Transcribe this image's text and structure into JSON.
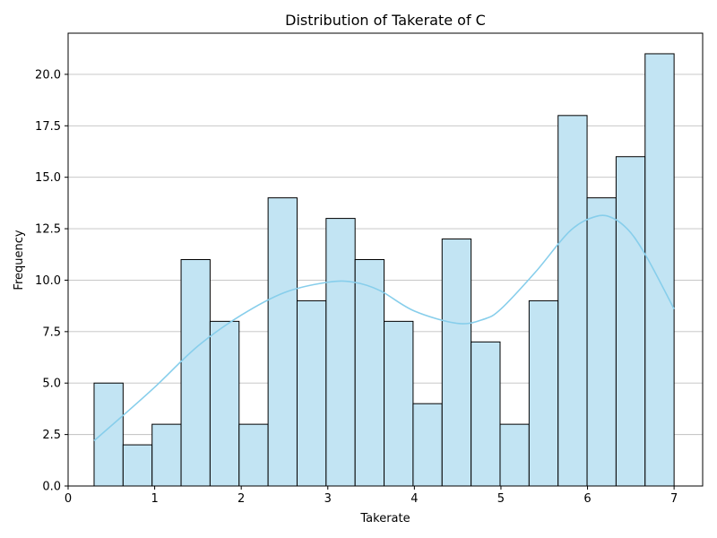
{
  "chart_data": {
    "type": "bar",
    "title": "Distribution of Takerate of C",
    "xlabel": "Takerate",
    "ylabel": "Frequency",
    "xlim": [
      0,
      7.33
    ],
    "ylim": [
      0,
      22
    ],
    "xticks": [
      0,
      1,
      2,
      3,
      4,
      5,
      6,
      7
    ],
    "xtick_labels": [
      "0",
      "1",
      "2",
      "3",
      "4",
      "5",
      "6",
      "7"
    ],
    "yticks": [
      0,
      2.5,
      5,
      7.5,
      10,
      12.5,
      15,
      17.5,
      20
    ],
    "ytick_labels": [
      "0.0",
      "2.5",
      "5.0",
      "7.5",
      "10.0",
      "12.5",
      "15.0",
      "17.5",
      "20.0"
    ],
    "grid": "horizontal",
    "bins": [
      [
        0.3,
        0.635
      ],
      [
        0.635,
        0.97
      ],
      [
        0.97,
        1.305
      ],
      [
        1.305,
        1.64
      ],
      [
        1.64,
        1.975
      ],
      [
        1.975,
        2.31
      ],
      [
        2.31,
        2.645
      ],
      [
        2.645,
        2.98
      ],
      [
        2.98,
        3.315
      ],
      [
        3.315,
        3.65
      ],
      [
        3.65,
        3.985
      ],
      [
        3.985,
        4.32
      ],
      [
        4.32,
        4.655
      ],
      [
        4.655,
        4.99
      ],
      [
        4.99,
        5.325
      ],
      [
        5.325,
        5.66
      ],
      [
        5.66,
        5.995
      ],
      [
        5.995,
        6.33
      ],
      [
        6.33,
        6.665
      ],
      [
        6.665,
        7.0
      ]
    ],
    "values": [
      5,
      2,
      3,
      11,
      8,
      3,
      14,
      9,
      13,
      11,
      8,
      4,
      12,
      7,
      3,
      9,
      18,
      14,
      16,
      21
    ],
    "kde": {
      "x": [
        0.3,
        0.6,
        1.0,
        1.5,
        2.0,
        2.5,
        3.0,
        3.3,
        3.6,
        4.0,
        4.5,
        4.8,
        5.0,
        5.4,
        5.8,
        6.1,
        6.3,
        6.5,
        6.7,
        7.0
      ],
      "y": [
        2.2,
        3.3,
        4.8,
        6.8,
        8.3,
        9.4,
        9.9,
        9.9,
        9.5,
        8.5,
        7.9,
        8.1,
        8.6,
        10.4,
        12.4,
        13.1,
        13.0,
        12.3,
        11.0,
        8.6
      ]
    },
    "colors": {
      "bar_fill": "#c2e4f3",
      "bar_stroke": "#000000",
      "kde_line": "#87ceeb",
      "grid": "#c0c0c0"
    }
  }
}
